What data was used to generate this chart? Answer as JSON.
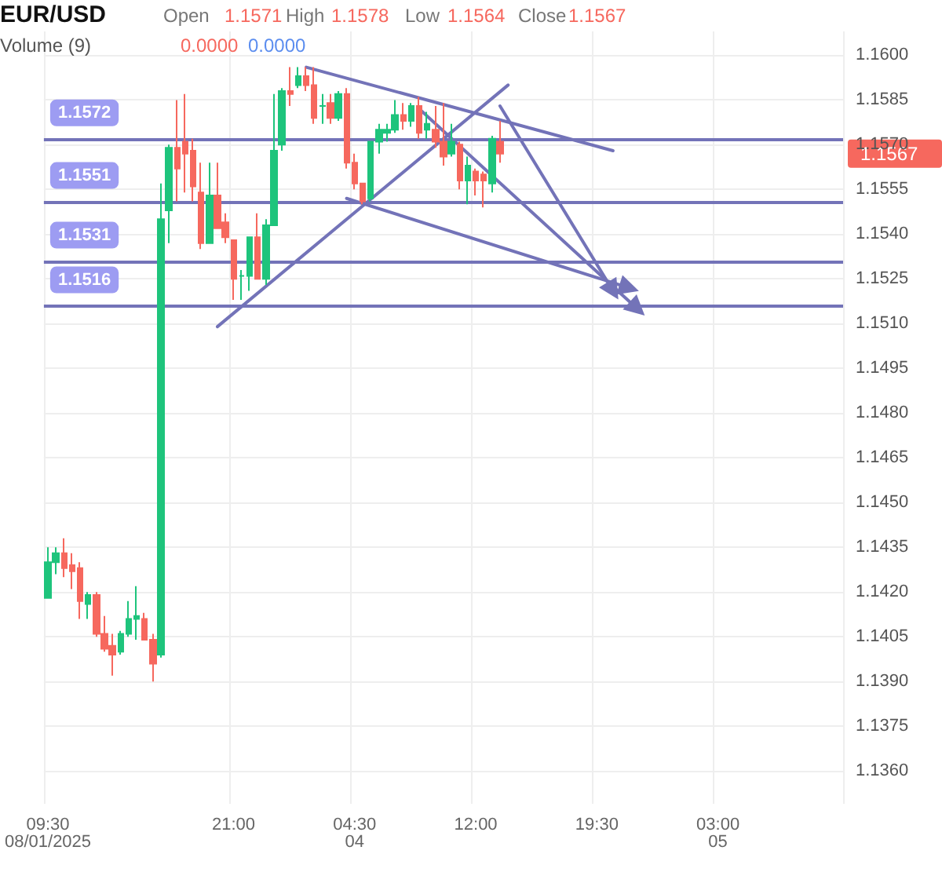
{
  "chart_data": {
    "type": "candlestick",
    "title": "EUR/USD",
    "annotations": [
      "Open",
      "1.1571",
      "High",
      "1.1578",
      "Low",
      "1.1564",
      "Close",
      "1.1567",
      "Volume (9)",
      "0.0000",
      "0.0000",
      "1.1567"
    ],
    "categories": [
      "09:30\n08/01/2025",
      null,
      null,
      null,
      null,
      null,
      null,
      null,
      null,
      null,
      null,
      null,
      null,
      null,
      null,
      null,
      null,
      null,
      null,
      null,
      null,
      null,
      null,
      "21:00",
      null,
      null,
      null,
      null,
      null,
      null,
      null,
      null,
      null,
      null,
      null,
      null,
      null,
      null,
      "04:30\n04",
      null,
      null,
      null,
      null,
      null,
      null,
      null,
      null,
      null,
      null,
      null,
      null,
      null,
      null,
      "12:00",
      null,
      null,
      null,
      null,
      null,
      null,
      null,
      null,
      null,
      null,
      null,
      null,
      null,
      null,
      "19:30",
      null,
      null,
      null,
      null,
      null,
      null,
      null,
      null,
      null,
      null,
      null,
      null,
      null,
      null,
      "03:00\n05",
      null,
      null,
      null,
      null,
      null,
      null,
      null,
      null,
      null,
      null,
      null,
      null,
      null,
      null,
      null
    ],
    "ohlc": [
      [
        1.1418,
        1.1435,
        1.1418,
        1.143
      ],
      [
        1.143,
        1.1435,
        1.1426,
        1.1433
      ],
      [
        1.1433,
        1.1438,
        1.1425,
        1.1428
      ],
      [
        1.1429,
        1.1433,
        1.1421,
        1.1427
      ],
      [
        1.1428,
        1.143,
        1.1411,
        1.1417
      ],
      [
        1.1416,
        1.142,
        1.1411,
        1.1419
      ],
      [
        1.1419,
        1.142,
        1.1405,
        1.1406
      ],
      [
        1.1406,
        1.1412,
        1.14,
        1.1401
      ],
      [
        1.1402,
        1.1406,
        1.1392,
        1.1399
      ],
      [
        1.14,
        1.1407,
        1.1399,
        1.1406
      ],
      [
        1.1406,
        1.1417,
        1.1405,
        1.1411
      ],
      [
        1.1411,
        1.1422,
        1.1404,
        1.1412
      ],
      [
        1.1411,
        1.1413,
        1.1404,
        1.1404
      ],
      [
        1.1404,
        1.1406,
        1.139,
        1.1396
      ],
      [
        1.1399,
        1.1557,
        1.1398,
        1.1545
      ],
      [
        1.1548,
        1.157,
        1.1537,
        1.1569
      ],
      [
        1.1569,
        1.1585,
        1.1551,
        1.1562
      ],
      [
        1.1571,
        1.1587,
        1.1554,
        1.1567
      ],
      [
        1.1568,
        1.1572,
        1.1551,
        1.1556
      ],
      [
        1.1554,
        1.1564,
        1.1535,
        1.1537
      ],
      [
        1.1537,
        1.1564,
        1.1537,
        1.1553
      ],
      [
        1.1553,
        1.1564,
        1.1542,
        1.1542
      ],
      [
        1.1544,
        1.1547,
        1.1537,
        1.1539
      ],
      [
        1.1538,
        1.1538,
        1.1518,
        1.1525
      ],
      [
        1.1526,
        1.1528,
        1.1518,
        1.1526
      ],
      [
        1.1526,
        1.1539,
        1.1521,
        1.1539
      ],
      [
        1.1539,
        1.1547,
        1.1525,
        1.1525
      ],
      [
        1.1525,
        1.1545,
        1.1523,
        1.1543
      ],
      [
        1.1543,
        1.1587,
        1.1543,
        1.1568
      ],
      [
        1.157,
        1.1589,
        1.1568,
        1.1588
      ],
      [
        1.1588,
        1.1596,
        1.1583,
        1.1587
      ],
      [
        1.159,
        1.1596,
        1.1589,
        1.1593
      ],
      [
        1.1593,
        1.1596,
        1.1588,
        1.159
      ],
      [
        1.159,
        1.1596,
        1.1577,
        1.1579
      ],
      [
        1.1583,
        1.1587,
        1.1577,
        1.1583
      ],
      [
        1.1584,
        1.1587,
        1.1577,
        1.1579
      ],
      [
        1.1579,
        1.1588,
        1.1578,
        1.1587
      ],
      [
        1.1587,
        1.1589,
        1.1562,
        1.1564
      ],
      [
        1.1564,
        1.1567,
        1.1555,
        1.1557
      ],
      [
        1.1557,
        1.1557,
        1.155,
        1.1551
      ],
      [
        1.1552,
        1.1571,
        1.1551,
        1.1571
      ],
      [
        1.1571,
        1.1577,
        1.1567,
        1.1575
      ],
      [
        1.1574,
        1.1577,
        1.1571,
        1.1575
      ],
      [
        1.1575,
        1.1585,
        1.1574,
        1.158
      ],
      [
        1.158,
        1.1584,
        1.1575,
        1.1578
      ],
      [
        1.1578,
        1.1584,
        1.1576,
        1.1583
      ],
      [
        1.1583,
        1.1586,
        1.1572,
        1.1574
      ],
      [
        1.1575,
        1.1581,
        1.1572,
        1.1577
      ],
      [
        1.1575,
        1.1583,
        1.1569,
        1.1571
      ],
      [
        1.1571,
        1.1584,
        1.1563,
        1.1566
      ],
      [
        1.1567,
        1.1577,
        1.1566,
        1.1571
      ],
      [
        1.157,
        1.1571,
        1.1555,
        1.1558
      ],
      [
        1.1558,
        1.1566,
        1.155,
        1.1563
      ],
      [
        1.1561,
        1.1562,
        1.1553,
        1.1558
      ],
      [
        1.156,
        1.1561,
        1.1549,
        1.1558
      ],
      [
        1.1557,
        1.1573,
        1.1554,
        1.1572
      ],
      [
        1.1571,
        1.1578,
        1.1564,
        1.1567
      ],
      null,
      null,
      null,
      null,
      null,
      null,
      null,
      null,
      null,
      null,
      null,
      null,
      null,
      null,
      null,
      null,
      null,
      null,
      null,
      null,
      null,
      null,
      null,
      null,
      null,
      null,
      null,
      null,
      null,
      null,
      null,
      null,
      null,
      null,
      null,
      null,
      null,
      null,
      null,
      null,
      null,
      null
    ],
    "colors": [
      "#1ec47c",
      "#1ec47c",
      "#f6685e",
      "#f6685e",
      "#f6685e",
      "#1ec47c",
      "#f6685e",
      "#f6685e",
      "#f6685e",
      "#1ec47c",
      "#1ec47c",
      "#1ec47c",
      "#f6685e",
      "#f6685e",
      "#1ec47c",
      "#1ec47c",
      "#f6685e",
      "#f6685e",
      "#f6685e",
      "#f6685e",
      "#1ec47c",
      "#f6685e",
      "#f6685e",
      "#f6685e",
      "#1ec47c",
      "#1ec47c",
      "#f6685e",
      "#1ec47c",
      "#1ec47c",
      "#1ec47c",
      "#f6685e",
      "#1ec47c",
      "#f6685e",
      "#f6685e",
      "#1ec47c",
      "#f6685e",
      "#1ec47c",
      "#f6685e",
      "#f6685e",
      "#f6685e",
      "#1ec47c",
      "#1ec47c",
      "#1ec47c",
      "#1ec47c",
      "#f6685e",
      "#1ec47c",
      "#f6685e",
      "#1ec47c",
      "#f6685e",
      "#f6685e",
      "#1ec47c",
      "#f6685e",
      "#1ec47c",
      "#f6685e",
      "#f6685e",
      "#1ec47c",
      "#f6685e",
      null,
      null,
      null,
      null,
      null,
      null,
      null,
      null,
      null,
      null,
      null,
      null,
      null,
      null,
      null,
      null,
      null,
      null,
      null,
      null,
      null,
      null,
      null,
      null,
      null,
      null,
      null,
      null,
      null,
      null,
      null,
      null,
      null,
      null,
      null,
      null,
      null,
      null,
      null,
      null,
      null,
      null
    ],
    "series": [
      {
        "type": "line",
        "color": "#7373b8",
        "values": [
          null,
          null,
          null,
          null,
          null,
          null,
          null,
          null,
          null,
          null,
          null,
          null,
          null,
          null,
          null,
          null,
          null,
          null,
          null,
          null,
          null,
          null,
          null,
          null,
          null,
          null,
          null,
          null,
          null,
          null,
          null,
          null,
          1.1596,
          null,
          null,
          null,
          null,
          null,
          null,
          null,
          null,
          null,
          null,
          null,
          null,
          null,
          null,
          null,
          null,
          null,
          null,
          null,
          null,
          null,
          null,
          null,
          null,
          null,
          null,
          null,
          null,
          null,
          null,
          null,
          null,
          null,
          null,
          null,
          null,
          null,
          1.1568,
          null,
          null,
          null,
          null,
          null,
          null,
          null,
          null,
          null,
          null,
          null,
          null,
          null,
          null,
          null,
          null,
          null,
          null,
          null,
          null,
          null,
          null,
          null,
          null,
          null,
          null,
          null,
          null
        ]
      },
      {
        "type": "line",
        "color": "#7373b8",
        "values": [
          null,
          null,
          null,
          null,
          null,
          null,
          null,
          null,
          null,
          null,
          null,
          null,
          null,
          null,
          null,
          null,
          null,
          null,
          null,
          null,
          null,
          1.1509,
          null,
          null,
          null,
          null,
          null,
          null,
          null,
          null,
          null,
          null,
          null,
          null,
          null,
          null,
          null,
          null,
          null,
          null,
          null,
          null,
          null,
          null,
          null,
          null,
          null,
          null,
          null,
          null,
          null,
          null,
          null,
          null,
          null,
          null,
          null,
          1.159,
          null,
          null,
          null,
          null,
          null,
          null,
          null,
          null,
          null,
          null,
          null,
          null,
          null,
          null,
          null,
          null,
          null,
          null,
          null,
          null,
          null,
          null,
          null,
          null,
          null,
          null,
          null,
          null,
          null,
          null,
          null,
          null,
          null,
          null,
          null,
          null,
          null,
          null,
          null,
          null,
          null
        ]
      },
      {
        "type": "line",
        "color": "#7373b8",
        "marker": "triangle",
        "values": [
          null,
          null,
          null,
          null,
          null,
          null,
          null,
          null,
          null,
          null,
          null,
          null,
          null,
          null,
          null,
          null,
          null,
          null,
          null,
          null,
          null,
          null,
          null,
          null,
          null,
          null,
          null,
          null,
          null,
          null,
          null,
          null,
          null,
          null,
          null,
          null,
          null,
          1.1552,
          null,
          null,
          null,
          null,
          null,
          null,
          null,
          null,
          null,
          null,
          null,
          null,
          null,
          null,
          null,
          null,
          null,
          null,
          null,
          null,
          null,
          null,
          null,
          null,
          null,
          null,
          null,
          null,
          null,
          null,
          null,
          null,
          null,
          null,
          1.1522,
          null,
          null,
          null,
          null,
          null,
          null,
          null,
          null,
          null,
          null,
          null,
          null,
          null,
          null,
          null,
          null,
          null,
          null,
          null,
          null,
          null,
          null,
          null,
          null,
          null,
          null
        ]
      },
      {
        "type": "line",
        "color": "#7373b8",
        "marker": "triangle",
        "values": [
          null,
          null,
          null,
          null,
          null,
          null,
          null,
          null,
          null,
          null,
          null,
          null,
          null,
          null,
          null,
          null,
          null,
          null,
          null,
          null,
          null,
          null,
          null,
          null,
          null,
          null,
          null,
          null,
          null,
          null,
          null,
          null,
          null,
          null,
          null,
          null,
          null,
          null,
          null,
          null,
          null,
          null,
          null,
          null,
          null,
          null,
          1.1582,
          null,
          null,
          null,
          null,
          null,
          null,
          null,
          null,
          null,
          null,
          null,
          null,
          null,
          null,
          null,
          null,
          null,
          null,
          null,
          null,
          null,
          null,
          null,
          null,
          null,
          null,
          1.1515,
          null,
          null,
          null,
          null,
          null,
          null,
          null,
          null,
          null,
          null,
          null,
          null,
          null,
          null,
          null,
          null,
          null,
          null,
          null,
          null,
          null,
          null,
          null,
          null,
          null
        ]
      },
      {
        "type": "line",
        "color": "#7373b8",
        "marker": "triangle",
        "values": [
          null,
          null,
          null,
          null,
          null,
          null,
          null,
          null,
          null,
          null,
          null,
          null,
          null,
          null,
          null,
          null,
          null,
          null,
          null,
          null,
          null,
          null,
          null,
          null,
          null,
          null,
          null,
          null,
          null,
          null,
          null,
          null,
          null,
          null,
          null,
          null,
          null,
          null,
          null,
          null,
          null,
          null,
          null,
          null,
          null,
          null,
          null,
          null,
          null,
          null,
          null,
          null,
          null,
          null,
          null,
          null,
          1.1583,
          null,
          null,
          null,
          null,
          null,
          null,
          null,
          null,
          null,
          null,
          null,
          null,
          null,
          1.1521,
          null,
          null,
          null,
          null,
          null,
          null,
          null,
          null,
          null,
          null,
          null,
          null,
          null,
          null,
          null,
          null,
          null,
          null,
          null,
          null,
          null,
          null,
          null,
          null,
          null,
          null,
          null,
          null
        ]
      }
    ],
    "ref_lines": [
      {
        "axis": "y",
        "value": 1.1572,
        "label": "1.1572",
        "color": "#7373b8"
      },
      {
        "axis": "y",
        "value": 1.1551,
        "label": "1.1551",
        "color": "#7373b8"
      },
      {
        "axis": "y",
        "value": 1.1531,
        "label": "1.1531",
        "color": "#7373b8"
      },
      {
        "axis": "y",
        "value": 1.1516,
        "label": "1.1516",
        "color": "#7373b8"
      }
    ],
    "ylim": [
      1.1349,
      1.1608
    ],
    "yticks": [
      {
        "value": 1.136,
        "label": "1.1360"
      },
      {
        "value": 1.1375,
        "label": "1.1375"
      },
      {
        "value": 1.139,
        "label": "1.1390"
      },
      {
        "value": 1.1405,
        "label": "1.1405"
      },
      {
        "value": 1.142,
        "label": "1.1420"
      },
      {
        "value": 1.1435,
        "label": "1.1435"
      },
      {
        "value": 1.145,
        "label": "1.1450"
      },
      {
        "value": 1.1465,
        "label": "1.1465"
      },
      {
        "value": 1.148,
        "label": "1.1480"
      },
      {
        "value": 1.1495,
        "label": "1.1495"
      },
      {
        "value": 1.151,
        "label": "1.1510"
      },
      {
        "value": 1.1525,
        "label": "1.1525"
      },
      {
        "value": 1.154,
        "label": "1.1540"
      },
      {
        "value": 1.1555,
        "label": "1.1555"
      },
      {
        "value": 1.157,
        "label": "1.1570"
      },
      {
        "value": 1.1585,
        "label": "1.1585"
      },
      {
        "value": 1.16,
        "label": "1.1600"
      }
    ],
    "grid": true
  }
}
